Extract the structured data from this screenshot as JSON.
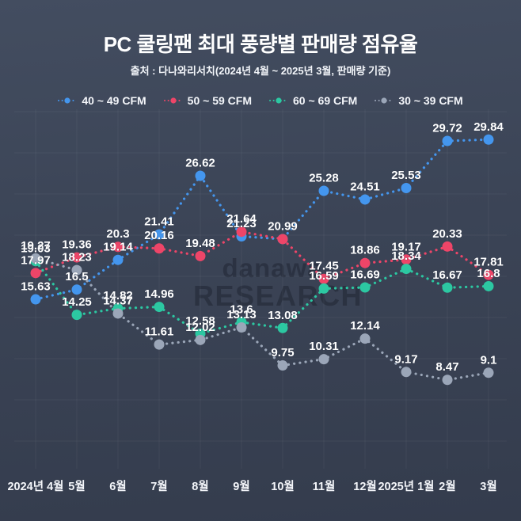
{
  "header": {
    "title": "PC 쿨링팬 최대 풍량별 판매량 점유율",
    "subtitle": "출처 : 다나와리서치(2024년 4월 ~ 2025년 3월, 판매량 기준)"
  },
  "watermark": {
    "line1": "danawa",
    "line2": "RESEARCH"
  },
  "colors": {
    "background_top": "#434d60",
    "background_bottom": "#343c4d",
    "text": "#ffffff",
    "grid": "rgba(255,255,255,0.05)",
    "series_blue": "#4496ee",
    "series_red": "#ee4568",
    "series_teal": "#2cc8a2",
    "series_gray": "#9ba6b8"
  },
  "chart_data": {
    "type": "line",
    "title": "PC 쿨링팬 최대 풍량별 판매량 점유율",
    "source": "출처 : 다나와리서치(2024년 4월 ~ 2025년 3월, 판매량 기준)",
    "style": "dotted-lines-with-round-markers-and-value-labels",
    "grid": true,
    "y_axis_visible": false,
    "x_axis_visible": true,
    "legend_position": "top",
    "ylim": [
      7,
      31
    ],
    "categories": [
      "2024년 4월",
      "5월",
      "6월",
      "7월",
      "8월",
      "9월",
      "10월",
      "11월",
      "12월",
      "2025년 1월",
      "2월",
      "3월"
    ],
    "series": [
      {
        "name": "40 ~ 49 CFM",
        "color_key": "series_blue",
        "values": [
          15.63,
          16.5,
          19.14,
          21.41,
          26.62,
          21.23,
          20.99,
          25.28,
          24.51,
          25.53,
          29.72,
          29.84
        ],
        "labels": [
          "15.63",
          "16.5",
          "19.14",
          "21.41",
          "26.62",
          "21.23",
          "",
          "25.28",
          "24.51",
          "25.53",
          "29.72",
          "29.84"
        ]
      },
      {
        "name": "50 ~ 59 CFM",
        "color_key": "series_red",
        "values": [
          17.97,
          19.36,
          20.3,
          20.16,
          19.48,
          21.64,
          20.99,
          17.45,
          18.86,
          19.17,
          20.33,
          17.81
        ],
        "labels": [
          "17.97",
          "19.36",
          "20.3",
          "20.16",
          "19.48",
          "21.64",
          "20.99",
          "17.45",
          "18.86",
          "19.17",
          "20.33",
          "17.81"
        ]
      },
      {
        "name": "60 ~ 69 CFM",
        "color_key": "series_teal",
        "values": [
          19.03,
          14.25,
          14.82,
          14.96,
          12.58,
          13.6,
          13.08,
          16.59,
          16.69,
          18.34,
          16.67,
          16.8
        ],
        "labels": [
          "19.03",
          "14.25",
          "14.82",
          "14.96",
          "12.58",
          "13.6",
          "13.08",
          "16.59",
          "16.69",
          "18.34",
          "16.67",
          "16.8"
        ]
      },
      {
        "name": "30 ~ 39 CFM",
        "color_key": "series_gray",
        "values": [
          19.27,
          18.23,
          14.37,
          11.61,
          12.02,
          13.13,
          9.75,
          10.31,
          12.14,
          9.17,
          8.47,
          9.1
        ],
        "labels": [
          "19.27",
          "18.23",
          "14.37",
          "11.61",
          "12.02",
          "13.13",
          "9.75",
          "10.31",
          "12.14",
          "9.17",
          "8.47",
          "9.1"
        ]
      }
    ]
  }
}
